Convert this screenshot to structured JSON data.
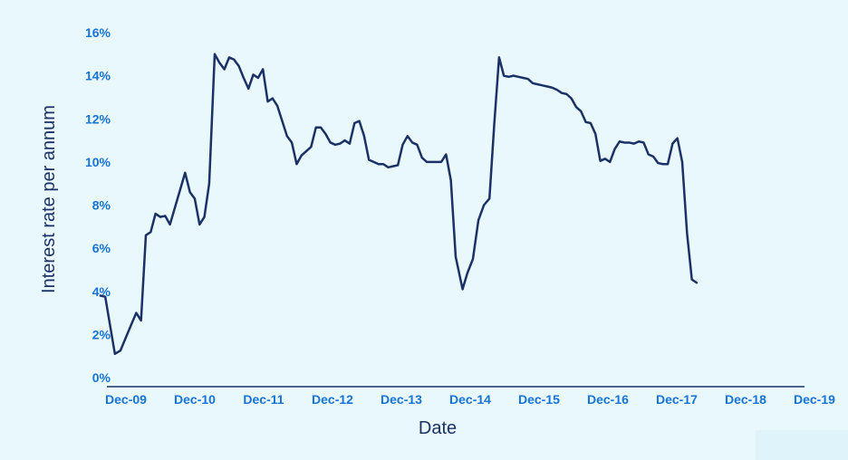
{
  "chart_data": {
    "type": "line",
    "title": "",
    "xlabel": "Date",
    "ylabel": "Interest rate per annum",
    "ylim": [
      0,
      16
    ],
    "yticks": [
      0,
      2,
      4,
      6,
      8,
      10,
      12,
      14,
      16
    ],
    "ytick_labels": [
      "0%",
      "2%",
      "4%",
      "6%",
      "8%",
      "10%",
      "12%",
      "14%",
      "16%"
    ],
    "xlim": [
      2009.92,
      2019.96
    ],
    "xticks": [
      2009.92,
      2010.92,
      2011.92,
      2012.92,
      2013.92,
      2014.92,
      2015.92,
      2016.92,
      2017.92,
      2018.92,
      2019.92
    ],
    "xtick_labels": [
      "Dec-09",
      "Dec-10",
      "Dec-11",
      "Dec-12",
      "Dec-13",
      "Dec-14",
      "Dec-15",
      "Dec-16",
      "Dec-17",
      "Dec-18",
      "Dec-19"
    ],
    "grid": false,
    "line_color": "#1c3166",
    "tick_label_color": "#1673d8",
    "axis_color": "#1c3166",
    "series": [
      {
        "values": [
          [
            2009.76,
            3.8
          ],
          [
            2009.83,
            3.75
          ],
          [
            2009.97,
            1.1
          ],
          [
            2010.05,
            1.25
          ],
          [
            2010.2,
            2.4
          ],
          [
            2010.28,
            3.0
          ],
          [
            2010.35,
            2.65
          ],
          [
            2010.42,
            6.6
          ],
          [
            2010.49,
            6.75
          ],
          [
            2010.56,
            7.6
          ],
          [
            2010.63,
            7.45
          ],
          [
            2010.7,
            7.5
          ],
          [
            2010.77,
            7.1
          ],
          [
            2010.99,
            9.5
          ],
          [
            2011.06,
            8.6
          ],
          [
            2011.13,
            8.3
          ],
          [
            2011.2,
            7.1
          ],
          [
            2011.27,
            7.45
          ],
          [
            2011.34,
            9.0
          ],
          [
            2011.42,
            15.0
          ],
          [
            2011.49,
            14.6
          ],
          [
            2011.56,
            14.3
          ],
          [
            2011.63,
            14.85
          ],
          [
            2011.7,
            14.75
          ],
          [
            2011.77,
            14.45
          ],
          [
            2011.84,
            13.9
          ],
          [
            2011.91,
            13.4
          ],
          [
            2011.98,
            14.05
          ],
          [
            2012.05,
            13.9
          ],
          [
            2012.12,
            14.3
          ],
          [
            2012.19,
            12.8
          ],
          [
            2012.26,
            12.95
          ],
          [
            2012.33,
            12.6
          ],
          [
            2012.4,
            11.9
          ],
          [
            2012.47,
            11.2
          ],
          [
            2012.54,
            10.9
          ],
          [
            2012.61,
            9.9
          ],
          [
            2012.68,
            10.3
          ],
          [
            2012.75,
            10.5
          ],
          [
            2012.82,
            10.7
          ],
          [
            2012.89,
            11.6
          ],
          [
            2012.96,
            11.6
          ],
          [
            2013.03,
            11.3
          ],
          [
            2013.1,
            10.9
          ],
          [
            2013.17,
            10.8
          ],
          [
            2013.24,
            10.85
          ],
          [
            2013.31,
            11.0
          ],
          [
            2013.38,
            10.85
          ],
          [
            2013.45,
            11.8
          ],
          [
            2013.52,
            11.9
          ],
          [
            2013.59,
            11.2
          ],
          [
            2013.66,
            10.1
          ],
          [
            2013.73,
            10.0
          ],
          [
            2013.8,
            9.9
          ],
          [
            2013.87,
            9.9
          ],
          [
            2013.94,
            9.75
          ],
          [
            2014.01,
            9.8
          ],
          [
            2014.08,
            9.85
          ],
          [
            2014.15,
            10.8
          ],
          [
            2014.22,
            11.2
          ],
          [
            2014.29,
            10.9
          ],
          [
            2014.36,
            10.8
          ],
          [
            2014.43,
            10.2
          ],
          [
            2014.5,
            10.0
          ],
          [
            2014.57,
            10.0
          ],
          [
            2014.64,
            10.0
          ],
          [
            2014.71,
            10.0
          ],
          [
            2014.78,
            10.35
          ],
          [
            2014.85,
            9.15
          ],
          [
            2014.92,
            5.6
          ],
          [
            2015.02,
            4.1
          ],
          [
            2015.09,
            4.85
          ],
          [
            2015.17,
            5.5
          ],
          [
            2015.25,
            7.3
          ],
          [
            2015.33,
            8.0
          ],
          [
            2015.41,
            8.3
          ],
          [
            2015.48,
            11.75
          ],
          [
            2015.55,
            14.85
          ],
          [
            2015.62,
            14.0
          ],
          [
            2015.69,
            13.95
          ],
          [
            2015.76,
            14.0
          ],
          [
            2015.83,
            13.95
          ],
          [
            2015.9,
            13.9
          ],
          [
            2015.97,
            13.85
          ],
          [
            2016.04,
            13.65
          ],
          [
            2016.11,
            13.6
          ],
          [
            2016.18,
            13.55
          ],
          [
            2016.25,
            13.5
          ],
          [
            2016.32,
            13.45
          ],
          [
            2016.39,
            13.35
          ],
          [
            2016.46,
            13.2
          ],
          [
            2016.53,
            13.15
          ],
          [
            2016.6,
            12.95
          ],
          [
            2016.67,
            12.55
          ],
          [
            2016.74,
            12.35
          ],
          [
            2016.81,
            11.85
          ],
          [
            2016.88,
            11.8
          ],
          [
            2016.95,
            11.3
          ],
          [
            2017.02,
            10.05
          ],
          [
            2017.09,
            10.15
          ],
          [
            2017.16,
            10.0
          ],
          [
            2017.23,
            10.6
          ],
          [
            2017.3,
            10.95
          ],
          [
            2017.37,
            10.9
          ],
          [
            2017.44,
            10.9
          ],
          [
            2017.51,
            10.85
          ],
          [
            2017.58,
            10.95
          ],
          [
            2017.65,
            10.9
          ],
          [
            2017.72,
            10.35
          ],
          [
            2017.79,
            10.25
          ],
          [
            2017.86,
            9.95
          ],
          [
            2017.93,
            9.9
          ],
          [
            2018.0,
            9.9
          ],
          [
            2018.07,
            10.85
          ],
          [
            2018.14,
            11.1
          ],
          [
            2018.21,
            10.0
          ],
          [
            2018.28,
            6.7
          ],
          [
            2018.35,
            4.55
          ],
          [
            2018.42,
            4.4
          ]
        ]
      }
    ]
  }
}
